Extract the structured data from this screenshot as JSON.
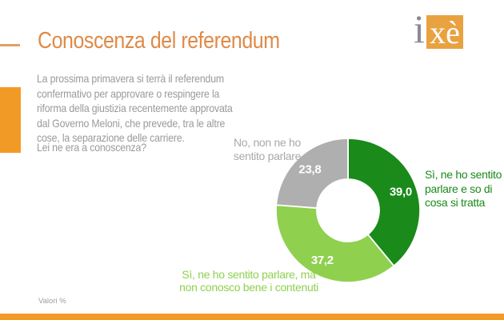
{
  "slide": {
    "title": "Conoscenza del referendum",
    "intro_paragraph": "La prossima primavera si terrà il referendum\nconfermativo per approvare o respingere la\nriforma della giustizia recentemente approvata\ndal Governo Meloni, che prevede, tra le altre\ncose, la separazione delle carriere.",
    "question": "Lei ne era a conoscenza?",
    "footnote": "Valori %"
  },
  "logo": {
    "i": "i",
    "xe": "xè"
  },
  "colors": {
    "accent_orange": "#F29A26",
    "title_orange": "#DE8A47",
    "logo_orange": "#E9A240",
    "dark_green": "#1A8A1A",
    "light_green": "#8FD04F",
    "segment_gray": "#AFAFAF",
    "text_gray": "#9A9A9A"
  },
  "chart_data": {
    "type": "pie",
    "subtype": "donut",
    "title": "Conoscenza del referendum",
    "unit": "percent",
    "note": "Valori %",
    "start_angle_deg": 0,
    "direction": "clockwise",
    "segments": [
      {
        "label": "Sì, ne ho sentito parlare e so di cosa si tratta",
        "label_wrapped": "Sì, ne ho sentito\nparlare e so di\ncosa si tratta",
        "value": 39.0,
        "display": "39,0",
        "color": "#1A8A1A"
      },
      {
        "label": "Sì, ne ho sentito parlare, ma non conosco bene i contenuti",
        "label_wrapped": "Sì, ne ho sentito parlare, ma\nnon conosco bene i contenuti",
        "value": 37.2,
        "display": "37,2",
        "color": "#8FD04F"
      },
      {
        "label": "No, non ne ho sentito parlare",
        "label_wrapped": "No, non ne ho\nsentito parlare",
        "value": 23.8,
        "display": "23,8",
        "color": "#AFAFAF"
      }
    ]
  }
}
